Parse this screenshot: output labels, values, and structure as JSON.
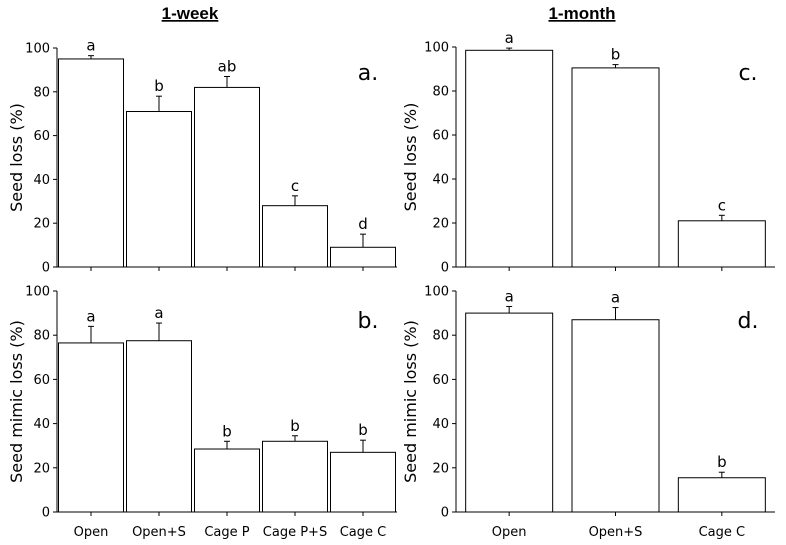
{
  "columns": [
    "1-week",
    "1-month"
  ],
  "chart_data": [
    {
      "id": "a",
      "type": "bar",
      "panel_label": "a.",
      "ylabel": "Seed loss (%)",
      "ylim": [
        0,
        100
      ],
      "yticks": [
        0,
        20,
        40,
        60,
        80,
        100
      ],
      "categories": [
        "Open",
        "Open+S",
        "Cage P",
        "Cage P+S",
        "Cage C"
      ],
      "show_categories": false,
      "values": [
        95,
        71,
        82,
        28,
        9
      ],
      "errors": [
        1.5,
        7,
        5,
        4.5,
        6
      ],
      "letters": [
        "a",
        "b",
        "ab",
        "c",
        "d"
      ]
    },
    {
      "id": "b",
      "type": "bar",
      "panel_label": "b.",
      "ylabel": "Seed mimic loss (%)",
      "ylim": [
        0,
        100
      ],
      "yticks": [
        0,
        20,
        40,
        60,
        80,
        100
      ],
      "categories": [
        "Open",
        "Open+S",
        "Cage P",
        "Cage P+S",
        "Cage C"
      ],
      "show_categories": true,
      "values": [
        76.5,
        77.5,
        28.5,
        32,
        27
      ],
      "errors": [
        7.5,
        8,
        3.5,
        2.5,
        5.5
      ],
      "letters": [
        "a",
        "a",
        "b",
        "b",
        "b"
      ]
    },
    {
      "id": "c",
      "type": "bar",
      "panel_label": "c.",
      "ylabel": "Seed loss (%)",
      "ylim": [
        0,
        100
      ],
      "yticks": [
        0,
        20,
        40,
        60,
        80,
        100
      ],
      "categories": [
        "Open",
        "Open+S",
        "Cage C"
      ],
      "show_categories": false,
      "values": [
        98.5,
        90.5,
        21
      ],
      "errors": [
        1,
        1.5,
        2.5
      ],
      "letters": [
        "a",
        "b",
        "c"
      ]
    },
    {
      "id": "d",
      "type": "bar",
      "panel_label": "d.",
      "ylabel": "Seed mimic loss (%)",
      "ylim": [
        0,
        100
      ],
      "yticks": [
        0,
        20,
        40,
        60,
        80,
        100
      ],
      "categories": [
        "Open",
        "Open+S",
        "Cage C"
      ],
      "show_categories": true,
      "values": [
        90,
        87,
        15.5
      ],
      "errors": [
        3,
        5.5,
        2.5
      ],
      "letters": [
        "a",
        "a",
        "b"
      ]
    }
  ]
}
